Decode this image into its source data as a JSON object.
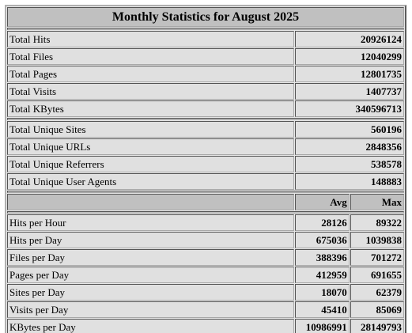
{
  "title": "Monthly Statistics for August 2025",
  "totals": [
    {
      "label": "Total Hits",
      "value": 20926124
    },
    {
      "label": "Total Files",
      "value": 12040299
    },
    {
      "label": "Total Pages",
      "value": 12801735
    },
    {
      "label": "Total Visits",
      "value": 1407737
    },
    {
      "label": "Total KBytes",
      "value": 340596713
    }
  ],
  "unique": [
    {
      "label": "Total Unique Sites",
      "value": 560196
    },
    {
      "label": "Total Unique URLs",
      "value": 2848356
    },
    {
      "label": "Total Unique Referrers",
      "value": 538578
    },
    {
      "label": "Total Unique User Agents",
      "value": 148883
    }
  ],
  "columns": {
    "avg": "Avg",
    "max": "Max"
  },
  "per": [
    {
      "label": "Hits per Hour",
      "avg": 28126,
      "max": 89322
    },
    {
      "label": "Hits per Day",
      "avg": 675036,
      "max": 1039838
    },
    {
      "label": "Files per Day",
      "avg": 388396,
      "max": 701272
    },
    {
      "label": "Pages per Day",
      "avg": 412959,
      "max": 691655
    },
    {
      "label": "Sites per Day",
      "avg": 18070,
      "max": 62379
    },
    {
      "label": "Visits per Day",
      "avg": 45410,
      "max": 85069
    },
    {
      "label": "KBytes per Day",
      "avg": 10986991,
      "max": 28149793
    }
  ]
}
